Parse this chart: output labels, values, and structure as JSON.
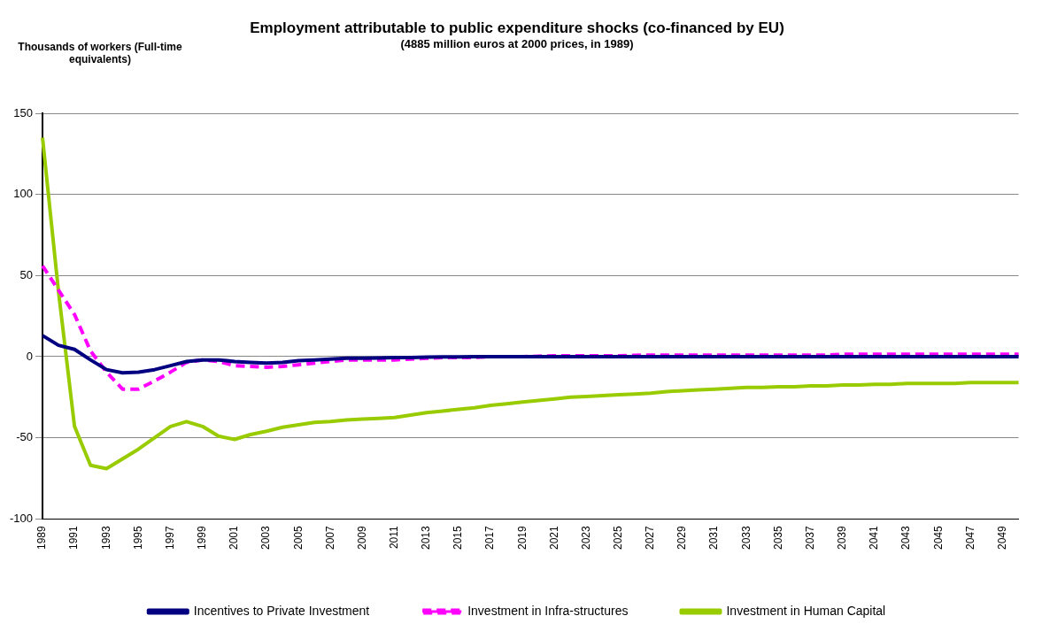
{
  "chart_data": {
    "type": "line",
    "title": "Employment attributable to public expenditure shocks (co-financed by EU)",
    "subtitle": "(4885 million euros at 2000 prices, in 1989)",
    "ylabel": "Thousands of workers (Full-time equivalents)",
    "categories": [
      "1989",
      null,
      "1991",
      null,
      "1993",
      null,
      "1995",
      null,
      "1997",
      null,
      "1999",
      null,
      "2001",
      null,
      "2003",
      null,
      "2005",
      null,
      "2007",
      null,
      "2009",
      null,
      "2011",
      null,
      "2013",
      null,
      "2015",
      null,
      "2017",
      null,
      "2019",
      null,
      "2021",
      null,
      "2023",
      null,
      "2025",
      null,
      "2027",
      null,
      "2029",
      null,
      "2031",
      null,
      "2033",
      null,
      "2035",
      null,
      "2037",
      null,
      "2039",
      null,
      "2041",
      null,
      "2043",
      null,
      "2045",
      null,
      "2047",
      null,
      "2049",
      null
    ],
    "series": [
      {
        "name": "Incentives to Private Investment",
        "color": "#000080",
        "line_style": "solid",
        "values": [
          13,
          7,
          4.5,
          -2,
          -8,
          -10,
          -9.5,
          -8,
          -5.5,
          -3,
          -2,
          -2,
          -3,
          -3.5,
          -4,
          -3.5,
          -2.5,
          -2,
          -1.5,
          -1,
          -1,
          -0.8,
          -0.6,
          -0.5,
          -0.3,
          -0.2,
          -0.1,
          0,
          0,
          0,
          0,
          0,
          0,
          0,
          0,
          0,
          0,
          0,
          0,
          0,
          0,
          0,
          0,
          0,
          0,
          0,
          0,
          0,
          0,
          0,
          0,
          0,
          0,
          0,
          0,
          0,
          0,
          0,
          0,
          0,
          0,
          0
        ]
      },
      {
        "name": "Investment in Infra-structures",
        "color": "#ff00ff",
        "line_style": "dashed",
        "values": [
          56,
          41,
          26,
          3.5,
          -9.5,
          -20,
          -20,
          -15,
          -9.5,
          -3.5,
          -2,
          -3,
          -5.5,
          -6,
          -6.5,
          -6,
          -5,
          -4,
          -3,
          -2,
          -2,
          -2,
          -2,
          -1.5,
          -1,
          -0.5,
          -0.5,
          -0.5,
          0,
          0,
          0,
          0.3,
          0.5,
          0.5,
          0.5,
          0.5,
          0.5,
          0.8,
          1,
          1,
          1,
          1,
          1,
          1,
          1,
          1,
          1,
          1,
          1,
          1,
          1.5,
          1.5,
          1.5,
          1.5,
          1.5,
          1.5,
          1.5,
          1.5,
          1.5,
          1.5,
          1.5,
          1.5
        ]
      },
      {
        "name": "Investment in Human Capital",
        "color": "#99cc00",
        "line_style": "solid",
        "values": [
          135,
          40,
          -43,
          -67,
          -69,
          -63,
          -57,
          -50,
          -43,
          -40,
          -43,
          -49,
          -51,
          -48,
          -46,
          -43.5,
          -42,
          -40.5,
          -40,
          -39,
          -38.5,
          -38,
          -37.5,
          -36,
          -34.5,
          -33.5,
          -32.5,
          -31.5,
          -30,
          -29,
          -28,
          -27,
          -26,
          -25,
          -24.5,
          -24,
          -23.5,
          -23,
          -22.5,
          -21.5,
          -21,
          -20.5,
          -20,
          -19.5,
          -19,
          -19,
          -18.5,
          -18.5,
          -18,
          -18,
          -17.5,
          -17.5,
          -17,
          -17,
          -16.5,
          -16.5,
          -16.5,
          -16.5,
          -16,
          -16,
          -16,
          -16
        ]
      }
    ],
    "ylim": [
      -100,
      150
    ],
    "yticks": [
      -100,
      -50,
      0,
      50,
      100,
      150
    ],
    "grid": "y",
    "legend": "bottom",
    "marker": "none"
  }
}
